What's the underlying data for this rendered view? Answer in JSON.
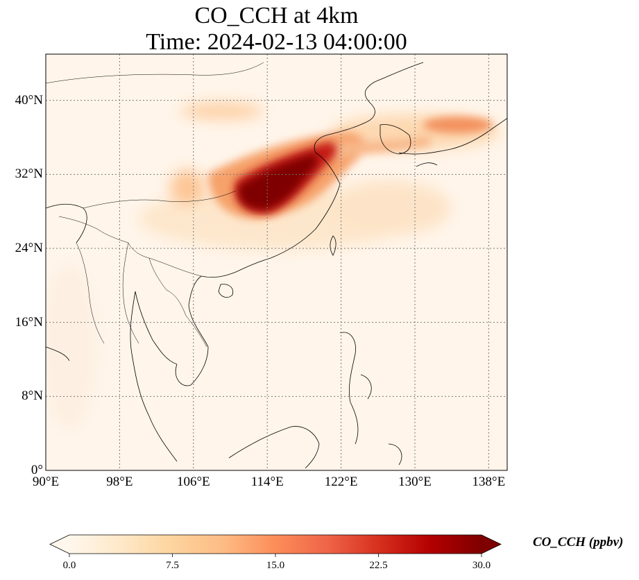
{
  "title": {
    "line1": "CO_CCH at 4km",
    "line2": "Time: 2024-02-13 04:00:00"
  },
  "map": {
    "lon_range": [
      90,
      140
    ],
    "lat_range": [
      0,
      45
    ],
    "lon_ticks": [
      "90°E",
      "98°E",
      "106°E",
      "114°E",
      "122°E",
      "130°E",
      "138°E"
    ],
    "lat_ticks": [
      "0°",
      "8°N",
      "16°N",
      "24°N",
      "32°N",
      "40°N"
    ],
    "gridlines": true,
    "gridline_style": "dotted",
    "features": [
      "coastlines",
      "country borders"
    ]
  },
  "colorbar": {
    "label": "CO_CCH (ppbv)",
    "cmap": "OrRd",
    "range": [
      0.0,
      30.0
    ],
    "tick_labels": [
      "0.0",
      "7.5",
      "15.0",
      "22.5",
      "30.0"
    ],
    "extend": "both",
    "colors": [
      "#fff7ec",
      "#fee8c8",
      "#fdd49e",
      "#fdbb84",
      "#fc8d59",
      "#ef6548",
      "#d7301f",
      "#b30000",
      "#7f0000"
    ]
  }
}
